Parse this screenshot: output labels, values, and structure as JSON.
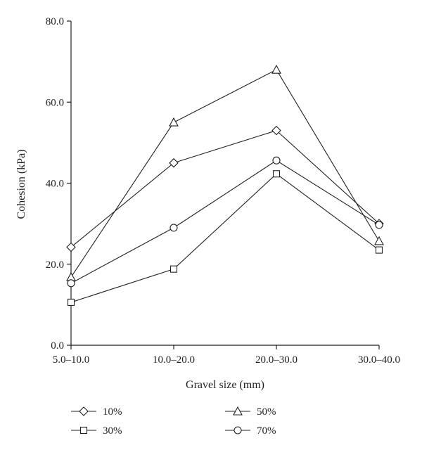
{
  "chart_data": {
    "type": "line",
    "title": "",
    "xlabel": "Gravel size (mm)",
    "ylabel": "Cohesion (kPa)",
    "categories": [
      "5.0–10.0",
      "10.0–20.0",
      "20.0–30.0",
      "30.0–40.0"
    ],
    "ylim": [
      0,
      80
    ],
    "yticks": [
      "0.0",
      "20.0",
      "40.0",
      "60.0",
      "80.0"
    ],
    "grid": false,
    "legend_position": "bottom",
    "line_color": "#231f20",
    "series": [
      {
        "name": "10%",
        "marker": "diamond",
        "values": [
          24.2,
          45.0,
          53.0,
          30.0
        ]
      },
      {
        "name": "30%",
        "marker": "square",
        "values": [
          10.6,
          18.8,
          42.3,
          23.5
        ]
      },
      {
        "name": "50%",
        "marker": "triangle",
        "values": [
          16.8,
          55.0,
          68.0,
          25.7
        ]
      },
      {
        "name": "70%",
        "marker": "circle",
        "values": [
          15.3,
          29.0,
          45.6,
          29.7
        ]
      }
    ]
  }
}
